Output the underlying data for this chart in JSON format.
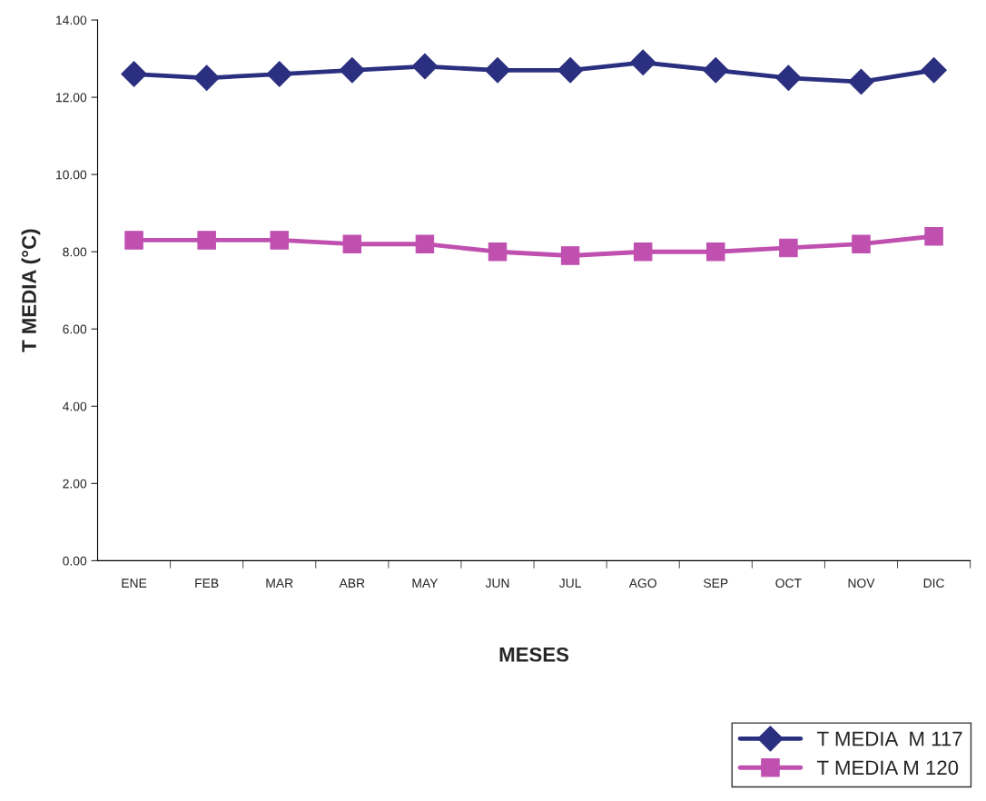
{
  "chart_data": {
    "type": "line",
    "categories": [
      "ENE",
      "FEB",
      "MAR",
      "ABR",
      "MAY",
      "JUN",
      "JUL",
      "AGO",
      "SEP",
      "OCT",
      "NOV",
      "DIC"
    ],
    "series": [
      {
        "name": "T MEDIA  M 117",
        "color": "#2b2f7f",
        "marker": "diamond",
        "values": [
          12.6,
          12.5,
          12.6,
          12.7,
          12.8,
          12.7,
          12.7,
          12.9,
          12.7,
          12.5,
          12.4,
          12.7
        ]
      },
      {
        "name": "T MEDIA M 120",
        "color": "#c050b0",
        "marker": "square",
        "values": [
          8.3,
          8.3,
          8.3,
          8.2,
          8.2,
          8.0,
          7.9,
          8.0,
          8.0,
          8.1,
          8.2,
          8.4
        ]
      }
    ],
    "xlabel": "MESES",
    "ylabel": "T MEDIA (°C)",
    "ylim": [
      0,
      14
    ],
    "yticks": [
      {
        "value": 0,
        "label": "0.00"
      },
      {
        "value": 2,
        "label": "2.00"
      },
      {
        "value": 4,
        "label": "4.00"
      },
      {
        "value": 6,
        "label": "6.00"
      },
      {
        "value": 8,
        "label": "8.00"
      },
      {
        "value": 10,
        "label": "10.00"
      },
      {
        "value": 12,
        "label": "12.00"
      },
      {
        "value": 14,
        "label": "14.00"
      }
    ],
    "grid": false,
    "legend": "bottom right",
    "line_style": "solid"
  }
}
